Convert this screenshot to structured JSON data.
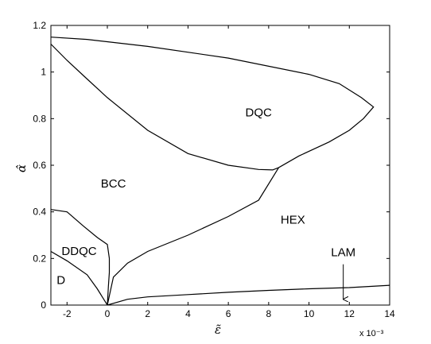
{
  "chart_data": {
    "type": "line",
    "title": "",
    "xlabel": "ε̃",
    "ylabel": "α̂",
    "x_multiplier": "x 10⁻³",
    "xlim": [
      -2.8,
      14
    ],
    "ylim": [
      0,
      1.2
    ],
    "xticks": [
      -2,
      0,
      2,
      4,
      6,
      8,
      10,
      12,
      14
    ],
    "yticks": [
      0,
      0.2,
      0.4,
      0.6,
      0.8,
      1,
      1.2
    ],
    "grid": false,
    "regions": [
      {
        "label": "DQC",
        "x": 7.5,
        "y": 0.81
      },
      {
        "label": "BCC",
        "x": 0.3,
        "y": 0.505
      },
      {
        "label": "HEX",
        "x": 9.2,
        "y": 0.35
      },
      {
        "label": "DDQC",
        "x": -1.4,
        "y": 0.215
      },
      {
        "label": "D",
        "x": -2.3,
        "y": 0.09
      },
      {
        "label": "LAM",
        "x": 11.7,
        "y": 0.21
      }
    ],
    "annotations": [
      {
        "text": "LAM",
        "from": [
          11.7,
          0.175
        ],
        "to": [
          11.7,
          0.025
        ]
      }
    ],
    "series": [
      {
        "values": [
          [
            -2.8,
            1.15
          ],
          [
            -1,
            1.14
          ],
          [
            2,
            1.11
          ],
          [
            6,
            1.06
          ],
          [
            10,
            0.99
          ],
          [
            11.5,
            0.95
          ],
          [
            12.6,
            0.89
          ],
          [
            13.2,
            0.85
          ],
          [
            12.7,
            0.8
          ],
          [
            12,
            0.75
          ],
          [
            11,
            0.7
          ],
          [
            9.5,
            0.64
          ],
          [
            8.5,
            0.59
          ],
          [
            8.2,
            0.58
          ],
          [
            7.5,
            0.582
          ],
          [
            6,
            0.6
          ],
          [
            4,
            0.65
          ],
          [
            2,
            0.75
          ],
          [
            0,
            0.89
          ],
          [
            -1,
            0.97
          ],
          [
            -2,
            1.05
          ],
          [
            -2.8,
            1.12
          ]
        ]
      },
      {
        "values": [
          [
            0,
            0
          ],
          [
            0.3,
            0.12
          ],
          [
            1,
            0.18
          ],
          [
            2,
            0.23
          ],
          [
            4,
            0.3
          ],
          [
            6,
            0.38
          ],
          [
            7.5,
            0.45
          ],
          [
            8.5,
            0.59
          ]
        ]
      },
      {
        "values": [
          [
            0,
            0
          ],
          [
            1,
            0.025
          ],
          [
            2,
            0.035
          ],
          [
            4,
            0.045
          ],
          [
            6,
            0.055
          ],
          [
            8,
            0.063
          ],
          [
            10,
            0.07
          ],
          [
            12,
            0.075
          ],
          [
            14,
            0.085
          ]
        ]
      },
      {
        "values": [
          [
            -2.8,
            0.41
          ],
          [
            -2,
            0.4
          ],
          [
            -1.2,
            0.34
          ],
          [
            -0.5,
            0.29
          ],
          [
            0,
            0.26
          ],
          [
            0.1,
            0.2
          ],
          [
            0.1,
            0.14
          ],
          [
            0.05,
            0.08
          ],
          [
            0,
            0
          ]
        ]
      },
      {
        "values": [
          [
            -2.8,
            0.23
          ],
          [
            -2,
            0.19
          ],
          [
            -1,
            0.13
          ],
          [
            -0.5,
            0.07
          ],
          [
            0,
            0
          ]
        ]
      }
    ]
  }
}
